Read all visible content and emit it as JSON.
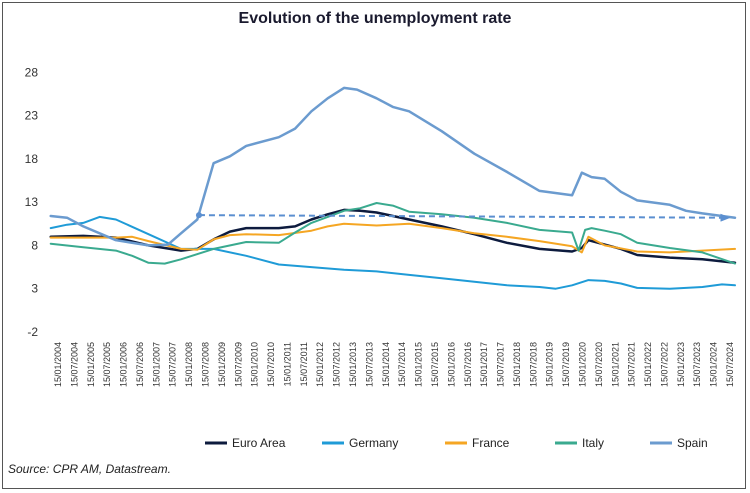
{
  "chart_data": {
    "type": "line",
    "title": "Evolution of the unemployment  rate",
    "source": "Source: CPR AM, Datastream.",
    "xlabel": "",
    "ylabel": "",
    "ylim": [
      -2,
      30
    ],
    "yticks": [
      -2,
      3,
      8,
      13,
      18,
      23,
      28
    ],
    "x_range": [
      2004.04,
      2025.0
    ],
    "x_labels": [
      "15/01/2004",
      "15/07/2004",
      "15/01/2005",
      "15/07/2005",
      "15/01/2006",
      "15/07/2006",
      "15/01/2007",
      "15/07/2007",
      "15/01/2008",
      "15/07/2008",
      "15/01/2009",
      "15/07/2009",
      "15/01/2010",
      "15/07/2010",
      "15/01/2011",
      "15/07/2011",
      "15/01/2012",
      "15/07/2012",
      "15/01/2013",
      "15/07/2013",
      "15/01/2014",
      "15/07/2014",
      "15/01/2015",
      "15/07/2015",
      "15/01/2016",
      "15/07/2016",
      "15/01/2017",
      "15/07/2017",
      "15/01/2018",
      "15/07/2018",
      "15/01/2019",
      "15/07/2019",
      "15/01/2020",
      "15/07/2020",
      "15/01/2021",
      "15/07/2021",
      "15/01/2022",
      "15/07/2022",
      "15/01/2023",
      "15/07/2023",
      "15/01/2024",
      "15/07/2024"
    ],
    "series": [
      {
        "name": "Euro Area",
        "color": "#0d1b3e",
        "width": 2.5,
        "x": [
          2004.0,
          2005.0,
          2006.0,
          2007.0,
          2008.0,
          2008.5,
          2009.0,
          2009.5,
          2010.0,
          2011.0,
          2011.5,
          2012.0,
          2012.5,
          2013.0,
          2013.5,
          2014.0,
          2015.0,
          2016.0,
          2017.0,
          2018.0,
          2019.0,
          2020.0,
          2020.3,
          2020.5,
          2021.0,
          2021.5,
          2022.0,
          2023.0,
          2024.0,
          2025.0
        ],
        "y": [
          9.0,
          9.1,
          8.9,
          8.0,
          7.4,
          7.6,
          8.7,
          9.6,
          10.0,
          10.0,
          10.2,
          11.0,
          11.6,
          12.1,
          12.0,
          11.8,
          11.0,
          10.2,
          9.3,
          8.3,
          7.6,
          7.3,
          7.7,
          8.6,
          8.1,
          7.6,
          6.9,
          6.6,
          6.4,
          6.0
        ]
      },
      {
        "name": "Germany",
        "color": "#1f9bd7",
        "width": 2,
        "x": [
          2004.0,
          2004.5,
          2005.0,
          2005.5,
          2006.0,
          2007.0,
          2008.0,
          2009.0,
          2010.0,
          2011.0,
          2012.0,
          2013.0,
          2014.0,
          2015.0,
          2016.0,
          2017.0,
          2018.0,
          2019.0,
          2019.5,
          2020.0,
          2020.5,
          2021.0,
          2021.5,
          2022.0,
          2023.0,
          2024.0,
          2024.6,
          2025.0
        ],
        "y": [
          10.0,
          10.4,
          10.6,
          11.3,
          11.0,
          9.3,
          7.6,
          7.6,
          6.8,
          5.8,
          5.5,
          5.2,
          5.0,
          4.6,
          4.2,
          3.8,
          3.4,
          3.2,
          3.0,
          3.4,
          4.0,
          3.9,
          3.6,
          3.1,
          3.0,
          3.2,
          3.5,
          3.4
        ]
      },
      {
        "name": "France",
        "color": "#f5a623",
        "width": 2,
        "x": [
          2004.0,
          2005.0,
          2006.0,
          2006.5,
          2007.0,
          2008.0,
          2008.5,
          2009.0,
          2009.5,
          2010.0,
          2011.0,
          2012.0,
          2012.5,
          2013.0,
          2014.0,
          2015.0,
          2016.0,
          2017.0,
          2018.0,
          2019.0,
          2020.0,
          2020.3,
          2020.5,
          2021.0,
          2022.0,
          2023.0,
          2024.0,
          2025.0
        ],
        "y": [
          8.9,
          8.9,
          8.9,
          9.0,
          8.5,
          7.6,
          7.5,
          8.7,
          9.2,
          9.3,
          9.2,
          9.7,
          10.2,
          10.5,
          10.3,
          10.5,
          10.0,
          9.4,
          9.0,
          8.5,
          7.9,
          7.2,
          9.0,
          8.0,
          7.3,
          7.2,
          7.4,
          7.6
        ]
      },
      {
        "name": "Italy",
        "color": "#3aaa8f",
        "width": 2,
        "x": [
          2004.0,
          2005.0,
          2006.0,
          2006.5,
          2007.0,
          2007.5,
          2008.0,
          2009.0,
          2010.0,
          2011.0,
          2011.5,
          2012.0,
          2012.5,
          2013.0,
          2013.5,
          2014.0,
          2014.5,
          2015.0,
          2016.0,
          2017.0,
          2018.0,
          2019.0,
          2020.0,
          2020.2,
          2020.4,
          2020.6,
          2021.0,
          2021.5,
          2022.0,
          2023.0,
          2024.0,
          2025.0
        ],
        "y": [
          8.2,
          7.8,
          7.4,
          6.8,
          6.0,
          5.9,
          6.4,
          7.6,
          8.4,
          8.3,
          9.5,
          10.6,
          11.3,
          12.0,
          12.3,
          12.9,
          12.6,
          11.9,
          11.6,
          11.2,
          10.6,
          9.8,
          9.5,
          7.4,
          9.8,
          10.0,
          9.7,
          9.3,
          8.3,
          7.7,
          7.2,
          5.9
        ]
      },
      {
        "name": "Spain",
        "color": "#6b9bcf",
        "width": 2.5,
        "x": [
          2004.0,
          2004.5,
          2005.0,
          2006.0,
          2007.0,
          2007.6,
          2008.0,
          2008.5,
          2009.0,
          2009.5,
          2010.0,
          2011.0,
          2011.5,
          2012.0,
          2012.5,
          2013.0,
          2013.4,
          2014.0,
          2014.5,
          2015.0,
          2016.0,
          2017.0,
          2018.0,
          2019.0,
          2020.0,
          2020.3,
          2020.6,
          2021.0,
          2021.5,
          2022.0,
          2023.0,
          2023.5,
          2024.0,
          2025.0
        ],
        "y": [
          11.4,
          11.2,
          10.2,
          8.6,
          8.0,
          8.1,
          9.4,
          11.0,
          17.5,
          18.3,
          19.5,
          20.5,
          21.5,
          23.5,
          25.0,
          26.2,
          26.0,
          25.0,
          24.0,
          23.5,
          21.2,
          18.6,
          16.5,
          14.3,
          13.8,
          16.4,
          15.9,
          15.7,
          14.2,
          13.2,
          12.7,
          12.0,
          11.7,
          11.2
        ]
      }
    ],
    "trend_arrow": {
      "color": "#5b8fd0",
      "x1": 2008.55,
      "y1": 11.5,
      "x2": 2024.8,
      "y2": 11.2
    }
  },
  "legend_order": [
    "Euro Area",
    "Germany",
    "France",
    "Italy",
    "Spain"
  ]
}
